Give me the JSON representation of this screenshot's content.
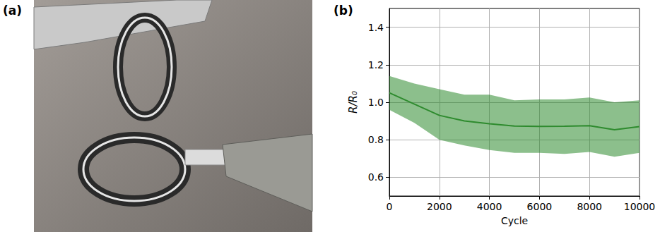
{
  "panel_labels": [
    "(a)",
    "(b)"
  ],
  "chart_data": {
    "type": "line",
    "x_label": "Cycle",
    "y_label": "R/R₀",
    "x": [
      0,
      1000,
      2000,
      3000,
      4000,
      5000,
      6000,
      7000,
      8000,
      9000,
      10000
    ],
    "values": [
      1.05,
      0.99,
      0.93,
      0.9,
      0.885,
      0.873,
      0.871,
      0.872,
      0.875,
      0.853,
      0.87
    ],
    "lower": [
      0.96,
      0.89,
      0.8,
      0.77,
      0.745,
      0.73,
      0.73,
      0.725,
      0.735,
      0.71,
      0.73
    ],
    "upper": [
      1.14,
      1.1,
      1.07,
      1.04,
      1.04,
      1.01,
      1.015,
      1.015,
      1.025,
      1.0,
      1.01
    ],
    "color": "#2e8b2e",
    "xlim": [
      0,
      10000
    ],
    "xticks": [
      0,
      2000,
      4000,
      6000,
      8000,
      10000
    ],
    "ylim": [
      0.5,
      1.5
    ],
    "yticks": [
      0.6,
      0.8,
      {
        "value": 1,
        "label": "1.0"
      },
      1.2,
      1.4
    ],
    "grid": true
  }
}
